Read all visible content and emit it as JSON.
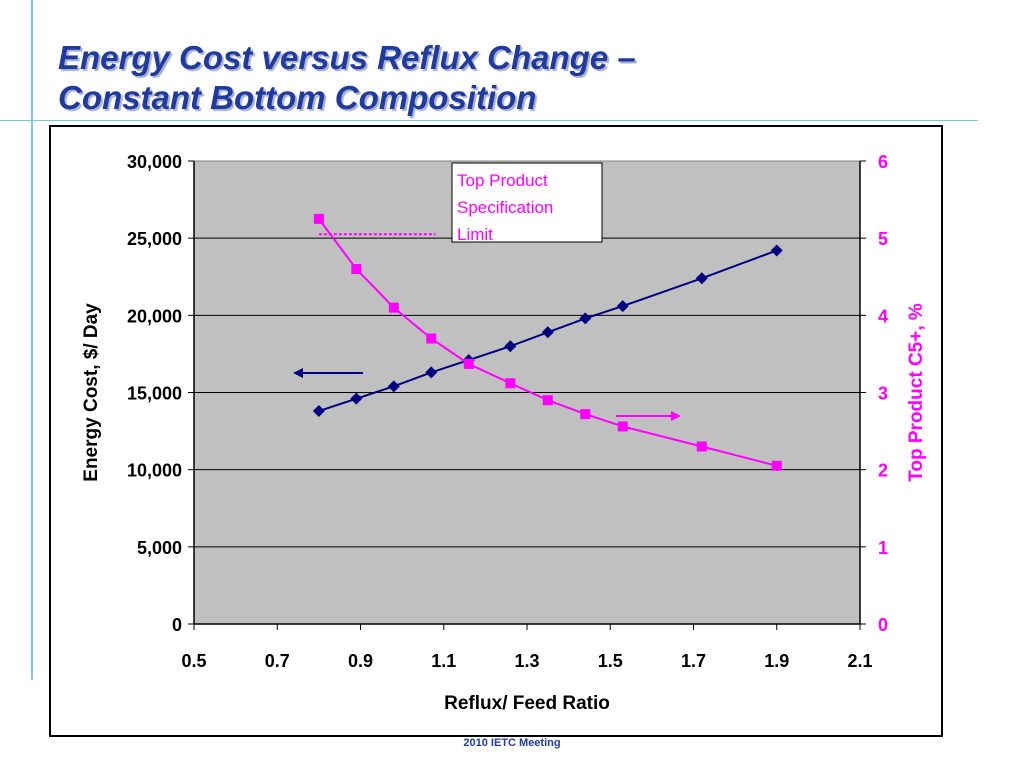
{
  "slide": {
    "title_line1": "Energy Cost versus Reflux Change –",
    "title_line2": "Constant Bottom Composition",
    "footer": "2010 IETC Meeting"
  },
  "colors": {
    "title": "#1f3aa0",
    "plot_background": "#c0c0c0",
    "energy_series": "#000080",
    "c5_series": "#ff00ff",
    "decorative_lines": "#7fc6d6"
  },
  "chart_data": {
    "type": "line",
    "title": "",
    "xlabel": "Reflux/ Feed Ratio",
    "ylabel": "Energy Cost, $/ Day",
    "y2label": "Top Product C5+, %",
    "xlim": [
      0.5,
      2.1
    ],
    "ylim": [
      0,
      30000
    ],
    "y2lim": [
      0,
      6
    ],
    "x_ticks": [
      "0.5",
      "0.7",
      "0.9",
      "1.1",
      "1.3",
      "1.5",
      "1.7",
      "1.9",
      "2.1"
    ],
    "y_ticks": [
      "0",
      "5,000",
      "10,000",
      "15,000",
      "20,000",
      "25,000",
      "30,000"
    ],
    "y2_ticks": [
      "0",
      "1",
      "2",
      "3",
      "4",
      "5",
      "6"
    ],
    "grid": "horizontal",
    "legend": "none",
    "series": [
      {
        "axis": "left",
        "marker": "diamond",
        "x": [
          0.8,
          0.89,
          0.98,
          1.07,
          1.16,
          1.26,
          1.35,
          1.44,
          1.53,
          1.72,
          1.9
        ],
        "y": [
          13800,
          14600,
          15400,
          16300,
          17100,
          18000,
          18900,
          19800,
          20600,
          22400,
          24200
        ]
      },
      {
        "axis": "right",
        "marker": "square",
        "x": [
          0.8,
          0.89,
          0.98,
          1.07,
          1.16,
          1.26,
          1.35,
          1.44,
          1.53,
          1.72,
          1.9
        ],
        "y": [
          5.25,
          4.6,
          4.1,
          3.7,
          3.37,
          3.12,
          2.9,
          2.72,
          2.56,
          2.3,
          2.05
        ]
      }
    ],
    "annotations": {
      "spec_box": [
        "Top Product",
        "Specification",
        "Limit"
      ],
      "spec_limit_value": 5.05,
      "spec_limit_x": [
        0.8,
        1.08
      ]
    }
  }
}
